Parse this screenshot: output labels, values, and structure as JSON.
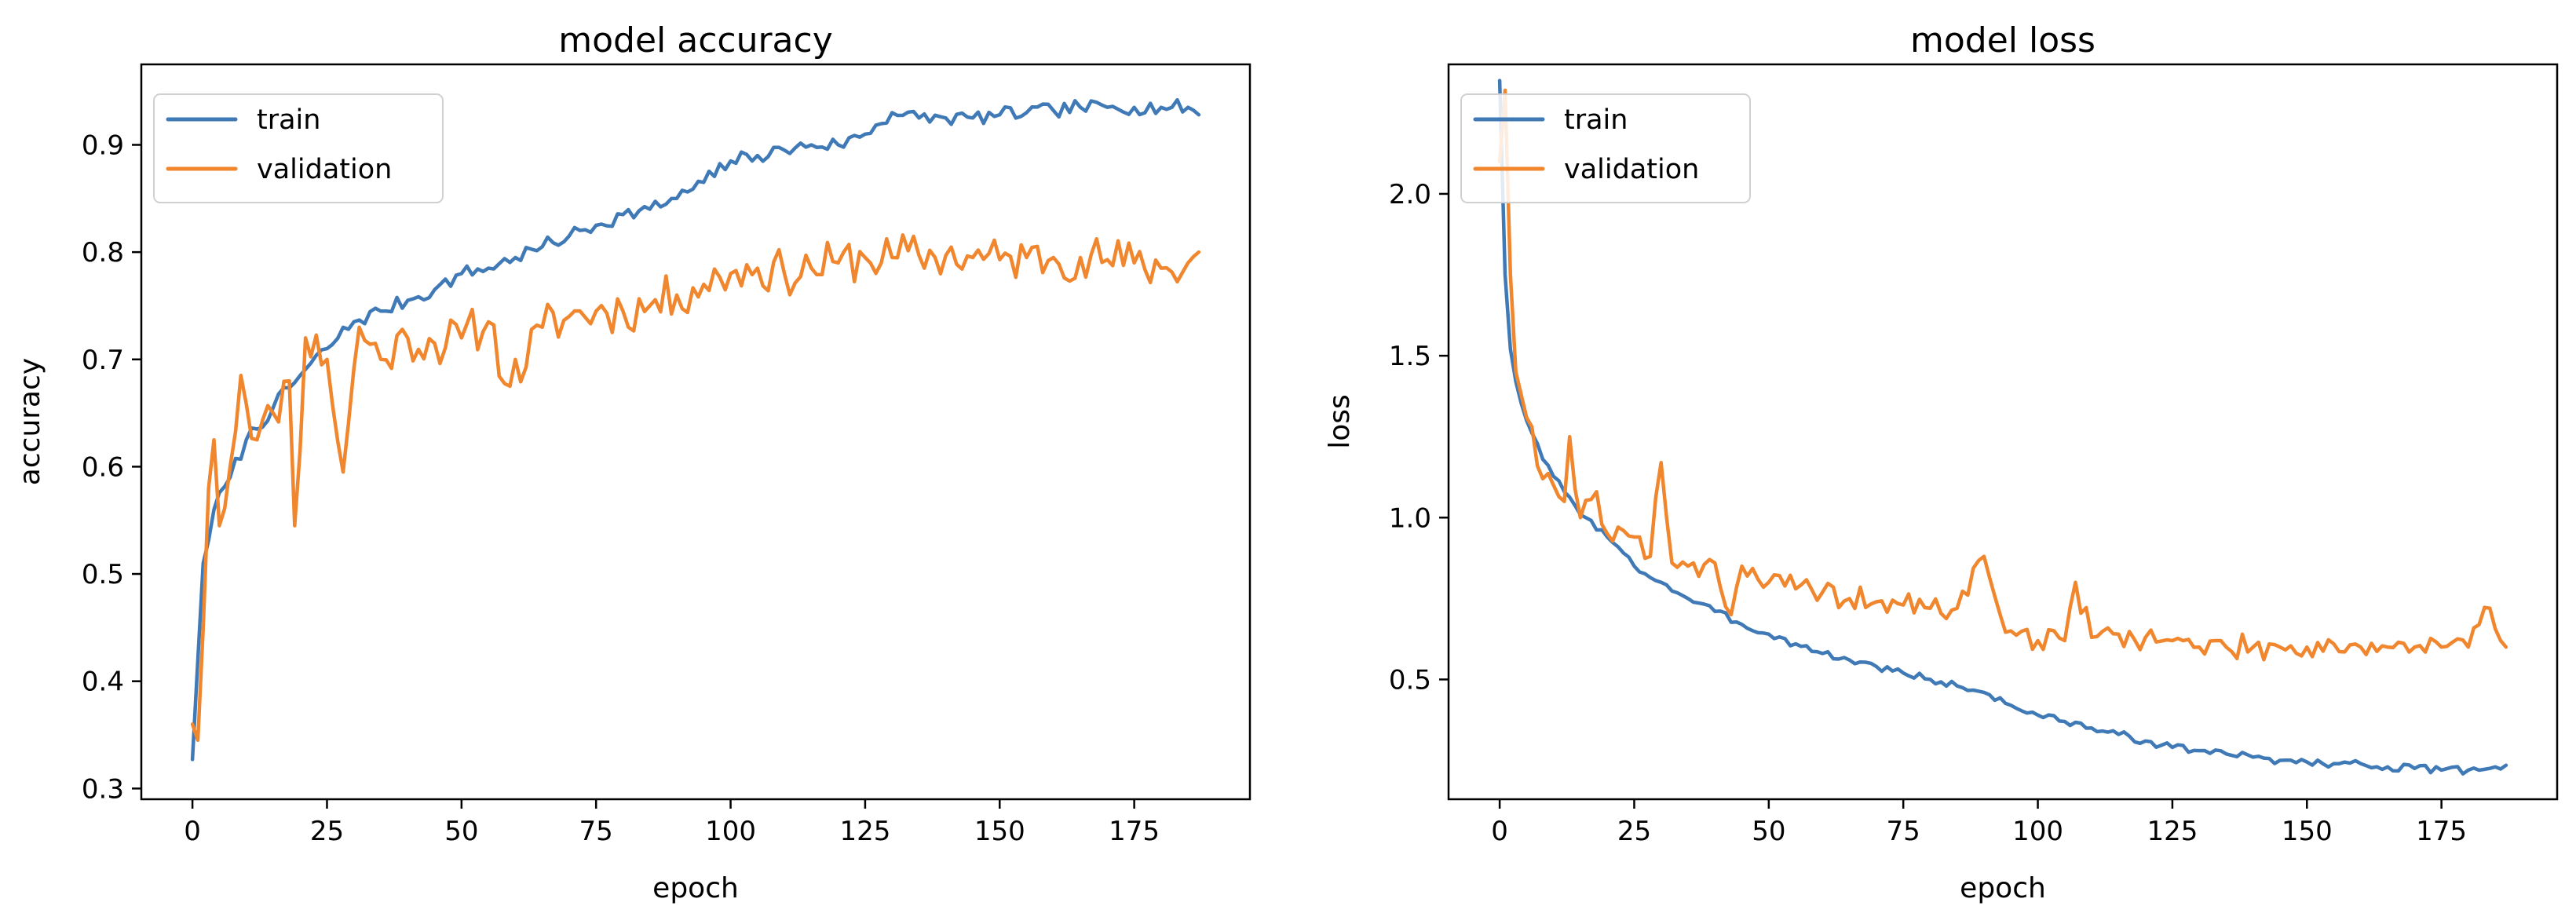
{
  "colors": {
    "train": "#3f79b6",
    "validation": "#f0862e",
    "axis": "#000000",
    "legend_border": "#d0d0d0"
  },
  "chart_data": [
    {
      "type": "line",
      "title": "model accuracy",
      "xlabel": "epoch",
      "ylabel": "accuracy",
      "xlim": [
        -9.5,
        196.5
      ],
      "ylim": [
        0.29,
        0.975
      ],
      "xticks": [
        0,
        25,
        50,
        75,
        100,
        125,
        150,
        175
      ],
      "yticks": [
        0.3,
        0.4,
        0.5,
        0.6,
        0.7,
        0.8,
        0.9
      ],
      "ytick_labels": [
        "0.3",
        "0.4",
        "0.5",
        "0.6",
        "0.7",
        "0.8",
        "0.9"
      ],
      "legend_position": "upper-left",
      "series": [
        {
          "name": "train",
          "color_key": "train",
          "anchors": [
            [
              0,
              0.327
            ],
            [
              1,
              0.42
            ],
            [
              2,
              0.51
            ],
            [
              4,
              0.56
            ],
            [
              7,
              0.59
            ],
            [
              10,
              0.625
            ],
            [
              15,
              0.655
            ],
            [
              20,
              0.685
            ],
            [
              25,
              0.71
            ],
            [
              30,
              0.735
            ],
            [
              35,
              0.745
            ],
            [
              40,
              0.755
            ],
            [
              45,
              0.765
            ],
            [
              50,
              0.78
            ],
            [
              55,
              0.785
            ],
            [
              60,
              0.795
            ],
            [
              65,
              0.805
            ],
            [
              70,
              0.815
            ],
            [
              75,
              0.825
            ],
            [
              80,
              0.835
            ],
            [
              85,
              0.84
            ],
            [
              90,
              0.85
            ],
            [
              95,
              0.865
            ],
            [
              100,
              0.885
            ],
            [
              105,
              0.89
            ],
            [
              110,
              0.895
            ],
            [
              115,
              0.9
            ],
            [
              120,
              0.9
            ],
            [
              125,
              0.91
            ],
            [
              130,
              0.93
            ],
            [
              135,
              0.925
            ],
            [
              140,
              0.925
            ],
            [
              145,
              0.925
            ],
            [
              150,
              0.928
            ],
            [
              155,
              0.93
            ],
            [
              160,
              0.932
            ],
            [
              165,
              0.935
            ],
            [
              170,
              0.935
            ],
            [
              175,
              0.935
            ],
            [
              180,
              0.935
            ],
            [
              185,
              0.935
            ],
            [
              187,
              0.928
            ]
          ],
          "noise": 0.007,
          "seed": 7
        },
        {
          "name": "validation",
          "color_key": "validation",
          "anchors": [
            [
              0,
              0.36
            ],
            [
              1,
              0.345
            ],
            [
              2,
              0.45
            ],
            [
              3,
              0.58
            ],
            [
              4,
              0.625
            ],
            [
              5,
              0.545
            ],
            [
              7,
              0.6
            ],
            [
              9,
              0.685
            ],
            [
              12,
              0.625
            ],
            [
              15,
              0.65
            ],
            [
              18,
              0.68
            ],
            [
              19,
              0.545
            ],
            [
              21,
              0.72
            ],
            [
              25,
              0.7
            ],
            [
              28,
              0.595
            ],
            [
              31,
              0.73
            ],
            [
              35,
              0.7
            ],
            [
              40,
              0.72
            ],
            [
              45,
              0.715
            ],
            [
              50,
              0.72
            ],
            [
              55,
              0.735
            ],
            [
              59,
              0.675
            ],
            [
              65,
              0.73
            ],
            [
              70,
              0.74
            ],
            [
              75,
              0.745
            ],
            [
              80,
              0.745
            ],
            [
              85,
              0.75
            ],
            [
              90,
              0.76
            ],
            [
              95,
              0.77
            ],
            [
              100,
              0.78
            ],
            [
              105,
              0.785
            ],
            [
              110,
              0.78
            ],
            [
              115,
              0.785
            ],
            [
              120,
              0.79
            ],
            [
              125,
              0.795
            ],
            [
              130,
              0.795
            ],
            [
              135,
              0.797
            ],
            [
              140,
              0.797
            ],
            [
              145,
              0.795
            ],
            [
              150,
              0.793
            ],
            [
              155,
              0.795
            ],
            [
              160,
              0.795
            ],
            [
              165,
              0.795
            ],
            [
              170,
              0.793
            ],
            [
              175,
              0.79
            ],
            [
              180,
              0.785
            ],
            [
              185,
              0.79
            ],
            [
              187,
              0.8
            ]
          ],
          "noise": 0.022,
          "seed": 11
        }
      ]
    },
    {
      "type": "line",
      "title": "model loss",
      "xlabel": "epoch",
      "ylabel": "loss",
      "xlim": [
        -9.5,
        196.5
      ],
      "ylim": [
        0.13,
        2.4
      ],
      "xticks": [
        0,
        25,
        50,
        75,
        100,
        125,
        150,
        175
      ],
      "yticks": [
        0.5,
        1.0,
        1.5,
        2.0
      ],
      "ytick_labels": [
        "0.5",
        "1.0",
        "1.5",
        "2.0"
      ],
      "legend_position": "upper-left",
      "series": [
        {
          "name": "train",
          "color_key": "train",
          "anchors": [
            [
              0,
              2.35
            ],
            [
              1,
              1.75
            ],
            [
              2,
              1.52
            ],
            [
              3,
              1.42
            ],
            [
              5,
              1.3
            ],
            [
              8,
              1.18
            ],
            [
              12,
              1.08
            ],
            [
              16,
              1.0
            ],
            [
              20,
              0.94
            ],
            [
              25,
              0.85
            ],
            [
              30,
              0.8
            ],
            [
              35,
              0.75
            ],
            [
              40,
              0.71
            ],
            [
              45,
              0.67
            ],
            [
              50,
              0.64
            ],
            [
              55,
              0.61
            ],
            [
              60,
              0.58
            ],
            [
              65,
              0.56
            ],
            [
              70,
              0.54
            ],
            [
              75,
              0.52
            ],
            [
              80,
              0.5
            ],
            [
              85,
              0.48
            ],
            [
              90,
              0.46
            ],
            [
              95,
              0.42
            ],
            [
              100,
              0.39
            ],
            [
              105,
              0.37
            ],
            [
              110,
              0.35
            ],
            [
              115,
              0.33
            ],
            [
              120,
              0.31
            ],
            [
              125,
              0.29
            ],
            [
              130,
              0.28
            ],
            [
              135,
              0.27
            ],
            [
              140,
              0.26
            ],
            [
              145,
              0.25
            ],
            [
              150,
              0.245
            ],
            [
              155,
              0.24
            ],
            [
              160,
              0.24
            ],
            [
              165,
              0.23
            ],
            [
              170,
              0.225
            ],
            [
              175,
              0.22
            ],
            [
              180,
              0.22
            ],
            [
              185,
              0.23
            ],
            [
              187,
              0.235
            ]
          ],
          "noise": 0.012,
          "seed": 3
        },
        {
          "name": "validation",
          "color_key": "validation",
          "anchors": [
            [
              0,
              2.1
            ],
            [
              1,
              2.32
            ],
            [
              2,
              1.75
            ],
            [
              3,
              1.45
            ],
            [
              4,
              1.38
            ],
            [
              6,
              1.28
            ],
            [
              8,
              1.12
            ],
            [
              10,
              1.1
            ],
            [
              12,
              1.05
            ],
            [
              13,
              1.25
            ],
            [
              15,
              1.0
            ],
            [
              18,
              1.08
            ],
            [
              20,
              0.95
            ],
            [
              23,
              0.96
            ],
            [
              25,
              0.94
            ],
            [
              28,
              0.88
            ],
            [
              30,
              1.17
            ],
            [
              32,
              0.86
            ],
            [
              35,
              0.85
            ],
            [
              40,
              0.86
            ],
            [
              43,
              0.7
            ],
            [
              45,
              0.85
            ],
            [
              50,
              0.8
            ],
            [
              55,
              0.78
            ],
            [
              60,
              0.77
            ],
            [
              65,
              0.75
            ],
            [
              70,
              0.74
            ],
            [
              75,
              0.73
            ],
            [
              80,
              0.72
            ],
            [
              85,
              0.72
            ],
            [
              90,
              0.88
            ],
            [
              93,
              0.7
            ],
            [
              95,
              0.65
            ],
            [
              100,
              0.62
            ],
            [
              105,
              0.62
            ],
            [
              107,
              0.8
            ],
            [
              110,
              0.63
            ],
            [
              115,
              0.64
            ],
            [
              120,
              0.63
            ],
            [
              125,
              0.62
            ],
            [
              130,
              0.6
            ],
            [
              135,
              0.6
            ],
            [
              140,
              0.6
            ],
            [
              145,
              0.6
            ],
            [
              150,
              0.6
            ],
            [
              155,
              0.61
            ],
            [
              160,
              0.6
            ],
            [
              165,
              0.6
            ],
            [
              170,
              0.6
            ],
            [
              175,
              0.6
            ],
            [
              180,
              0.6
            ],
            [
              184,
              0.72
            ],
            [
              186,
              0.62
            ],
            [
              187,
              0.6
            ]
          ],
          "noise": 0.04,
          "seed": 19
        }
      ]
    }
  ]
}
